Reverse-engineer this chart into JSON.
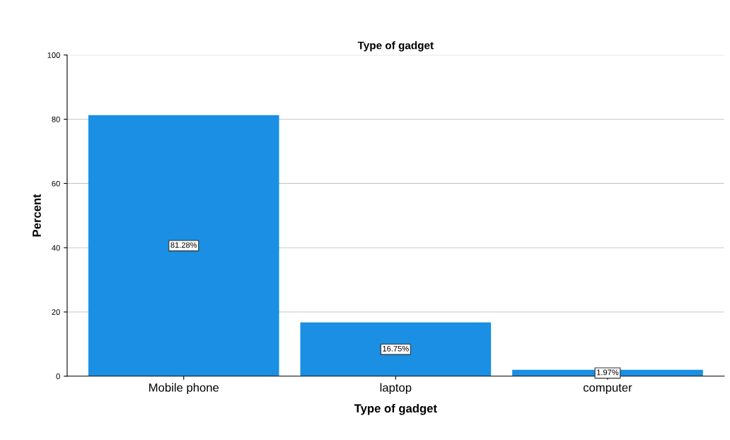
{
  "chart_data": {
    "type": "bar",
    "title": "Type of gadget",
    "xlabel": "Type of gadget",
    "ylabel": "Percent",
    "categories": [
      "Mobile phone",
      "laptop",
      "computer"
    ],
    "values": [
      81.28,
      16.75,
      1.97
    ],
    "color": "#1a8fe3",
    "value_labels": [
      "81.28%",
      "16.75%",
      "1.97%"
    ],
    "ylim": [
      0,
      100
    ],
    "yticks": [
      0,
      20,
      40,
      60,
      80,
      100
    ],
    "grid": "y"
  }
}
